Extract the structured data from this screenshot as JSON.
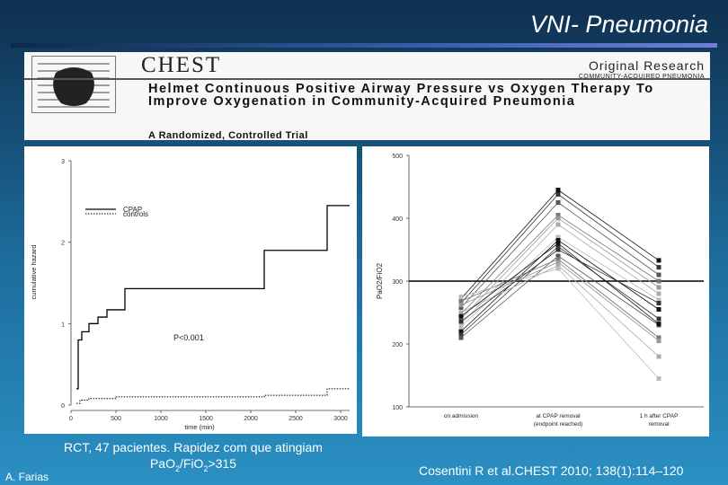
{
  "slide": {
    "title": "VNI- Pneumonia",
    "caption_line1": "RCT, 47 pacientes. Rapidez com que atingiam",
    "caption_line2_prefix": "PaO",
    "caption_line2_sub1": "2",
    "caption_line2_mid": "/FiO",
    "caption_line2_sub2": "2",
    "caption_line2_suffix": ">315",
    "author": "A. Farias",
    "citation": "Cosentini R et al.CHEST 2010; 138(1):114–120"
  },
  "header": {
    "journal": "CHEST",
    "section": "Original Research",
    "category": "COMMUNITY-ACQUIRED PNEUMONIA",
    "article_title": "Helmet Continuous Positive Airway Pressure vs Oxygen Therapy To Improve Oxygenation in Community-Acquired Pneumonia",
    "article_subtitle": "A Randomized, Controlled Trial"
  },
  "chart_data": [
    {
      "type": "line",
      "xlabel": "time (min)",
      "ylabel": "cumulative hazard",
      "xlim": [
        0,
        3100
      ],
      "ylim": [
        0,
        3
      ],
      "x_ticks": [
        0,
        500,
        1000,
        1500,
        2000,
        2500,
        3000
      ],
      "y_ticks": [
        0,
        1,
        2,
        3
      ],
      "annotation": "P<0.001",
      "legend_position": "top-left",
      "series": [
        {
          "name": "CPAP",
          "style": "solid",
          "x": [
            60,
            80,
            120,
            200,
            300,
            400,
            600,
            2150,
            2850,
            3100
          ],
          "y": [
            0.2,
            0.8,
            0.9,
            1.0,
            1.08,
            1.17,
            1.43,
            1.9,
            2.45,
            2.45
          ]
        },
        {
          "name": "controls",
          "style": "dotted",
          "x": [
            60,
            100,
            200,
            500,
            2150,
            2850,
            3100
          ],
          "y": [
            0.02,
            0.06,
            0.08,
            0.1,
            0.12,
            0.2,
            0.2
          ]
        }
      ]
    },
    {
      "type": "line",
      "ylabel": "PaO2/FiO2",
      "categories": [
        "on admission",
        "at CPAP removal\n(endpoint reached)",
        "1 h after CPAP\nremoval"
      ],
      "ylim": [
        100,
        500
      ],
      "y_ticks": [
        100,
        200,
        300,
        400,
        500
      ],
      "reference_line": 300,
      "series": [
        {
          "values": [
            272,
            445,
            333
          ]
        },
        {
          "values": [
            265,
            438,
            322
          ]
        },
        {
          "values": [
            258,
            425,
            310
          ]
        },
        {
          "values": [
            248,
            405,
            300
          ]
        },
        {
          "values": [
            240,
            400,
            290
          ]
        },
        {
          "values": [
            232,
            390,
            280
          ]
        },
        {
          "values": [
            228,
            370,
            270
          ]
        },
        {
          "values": [
            220,
            365,
            255
          ]
        },
        {
          "values": [
            215,
            355,
            240
          ]
        },
        {
          "values": [
            210,
            340,
            230
          ]
        },
        {
          "values": [
            268,
            335,
            210
          ]
        },
        {
          "values": [
            262,
            330,
            205
          ]
        },
        {
          "values": [
            250,
            325,
            180
          ]
        },
        {
          "values": [
            275,
            320,
            145
          ]
        },
        {
          "values": [
            244,
            360,
            232
          ]
        },
        {
          "values": [
            236,
            350,
            265
          ]
        }
      ]
    }
  ]
}
